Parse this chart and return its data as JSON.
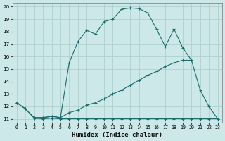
{
  "xlabel": "Humidex (Indice chaleur)",
  "background_color": "#cce8e8",
  "grid_color": "#aacccc",
  "line_color": "#1a6b6b",
  "xlim": [
    -0.5,
    23.5
  ],
  "ylim": [
    10.7,
    20.3
  ],
  "xticks": [
    0,
    1,
    2,
    3,
    4,
    5,
    6,
    7,
    8,
    9,
    10,
    11,
    12,
    13,
    14,
    15,
    16,
    17,
    18,
    19,
    20,
    21,
    22,
    23
  ],
  "yticks": [
    11,
    12,
    13,
    14,
    15,
    16,
    17,
    18,
    19,
    20
  ],
  "line1_x": [
    0,
    1,
    2,
    3,
    4,
    5,
    6,
    7,
    8,
    9,
    10,
    11,
    12,
    13,
    14,
    15,
    16,
    17,
    18,
    19,
    20,
    21,
    22,
    23
  ],
  "line1_y": [
    12.3,
    11.8,
    11.05,
    11.0,
    11.05,
    11.0,
    11.0,
    11.0,
    11.0,
    11.0,
    11.0,
    11.0,
    11.0,
    11.0,
    11.0,
    11.0,
    11.0,
    11.0,
    11.0,
    11.0,
    11.0,
    11.0,
    11.0,
    11.0
  ],
  "line2_x": [
    2,
    3,
    4,
    5,
    6,
    7,
    8,
    9,
    10,
    11,
    12,
    13,
    14,
    15,
    16,
    17,
    18,
    19,
    20
  ],
  "line2_y": [
    11.1,
    11.1,
    11.2,
    11.1,
    11.5,
    11.7,
    12.1,
    12.3,
    12.6,
    13.0,
    13.3,
    13.7,
    14.1,
    14.5,
    14.8,
    15.2,
    15.5,
    15.7,
    15.7
  ],
  "line3_x": [
    0,
    1,
    2,
    3,
    4,
    5,
    6,
    7,
    8,
    9,
    10,
    11,
    12,
    13,
    14,
    15,
    16,
    17,
    18,
    19,
    20,
    21,
    22,
    23
  ],
  "line3_y": [
    12.3,
    11.8,
    11.1,
    11.1,
    11.2,
    11.1,
    15.5,
    17.2,
    18.1,
    17.8,
    18.8,
    19.0,
    19.8,
    19.9,
    19.85,
    19.5,
    18.2,
    16.8,
    18.2,
    16.7,
    15.7,
    13.3,
    12.0,
    11.0
  ]
}
